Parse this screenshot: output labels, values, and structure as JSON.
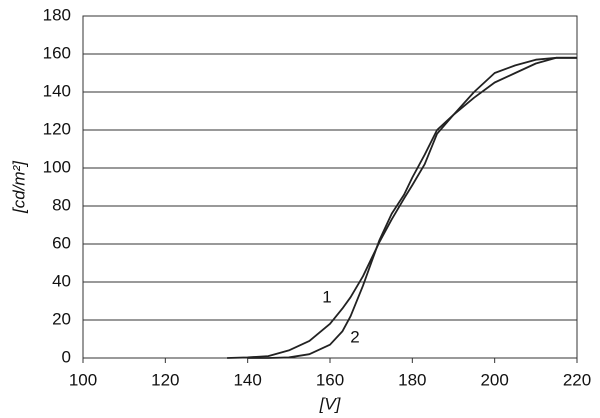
{
  "chart_data": {
    "type": "line",
    "x_label": "[V]",
    "y_label": "[cd/m²]",
    "x": [
      135,
      140,
      145,
      150,
      155,
      160,
      163,
      165,
      168,
      170,
      172,
      175,
      178,
      180,
      183,
      186,
      190,
      195,
      200,
      205,
      210,
      215,
      220
    ],
    "series": [
      {
        "name": "1",
        "color": "#222222",
        "values": [
          0,
          0.3,
          1,
          4,
          9,
          18,
          26,
          32,
          43,
          52,
          61,
          73,
          84,
          91,
          102,
          118,
          128,
          140,
          150,
          154,
          157,
          158,
          158
        ]
      },
      {
        "name": "2",
        "color": "#222222",
        "values": [
          null,
          0,
          0,
          0.3,
          2,
          7,
          14,
          22,
          38,
          50,
          62,
          76,
          86,
          95,
          107,
          120,
          128,
          137,
          145,
          150,
          155,
          158,
          158
        ]
      }
    ],
    "xlim": [
      100,
      220
    ],
    "xticks": [
      100,
      120,
      140,
      160,
      180,
      200,
      220
    ],
    "ylim": [
      0,
      180
    ],
    "yticks": [
      0,
      20,
      40,
      60,
      80,
      100,
      120,
      140,
      160,
      180
    ],
    "grid": true
  }
}
